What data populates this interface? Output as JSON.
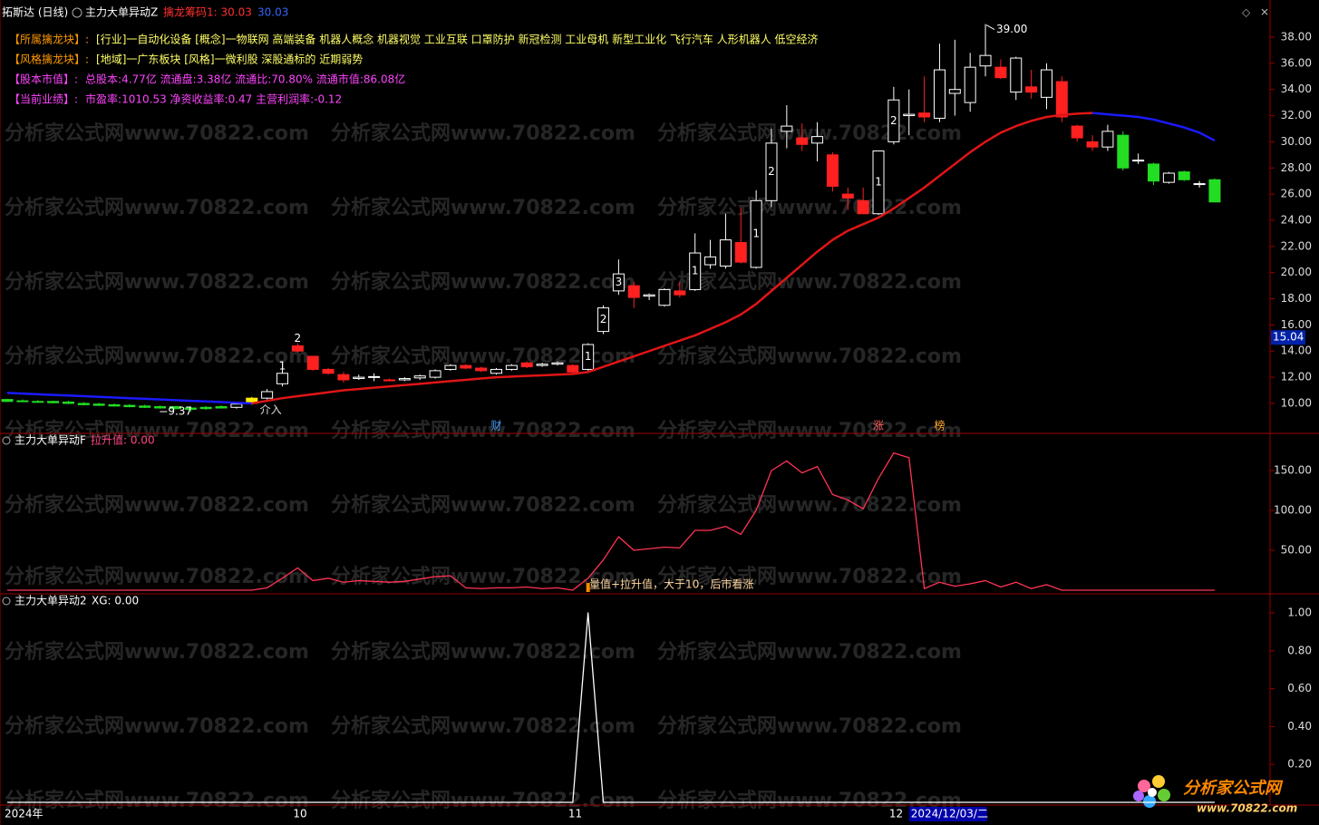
{
  "header": {
    "stock": "拓斯达 (日线)",
    "indicator": "主力大单异动Z",
    "chip_label": "擒龙筹码1: 30.03",
    "chip_value": "30.03"
  },
  "info": [
    {
      "key": "【所属擒龙块】:",
      "text": "[行业]一自动化设备 [概念]一物联网 高端装备 机器人概念 机器视觉 工业互联 口罩防护 新冠检测 工业母机 新型工业化 飞行汽车 人形机器人 低空经济",
      "key_color": "#ff9900",
      "text_color": "#ffff66"
    },
    {
      "key": "【风格擒龙块】:",
      "text": "[地域]一广东板块 [风格]一微利股 深股通标的 近期弱势",
      "key_color": "#ff9900",
      "text_color": "#ffff66"
    },
    {
      "key": "【股本市值】:",
      "text": "总股本:4.77亿 流通盘:3.38亿 流通比:70.80% 流通市值:86.08亿",
      "key_color": "#ff44ff",
      "text_color": "#ff44ff"
    },
    {
      "key": "【当前业绩】:",
      "text": "市盈率:1010.53 净资收益率:0.47 主营利润率:-0.12",
      "key_color": "#ff44ff",
      "text_color": "#ff44ff"
    }
  ],
  "watermark": "分析家公式网www.70822.com",
  "logo": {
    "name": "分析家公式网",
    "url": "www.70822.com"
  },
  "cursor_date": "2024/12/03/二",
  "chart_data": [
    {
      "type": "candlestick",
      "categories": [
        "2024年",
        null,
        null,
        null,
        null,
        null,
        null,
        null,
        null,
        null,
        null,
        null,
        null,
        null,
        null,
        null,
        null,
        null,
        null,
        "10",
        null,
        null,
        null,
        null,
        null,
        null,
        null,
        null,
        null,
        null,
        null,
        null,
        null,
        null,
        null,
        null,
        null,
        "11",
        null,
        null,
        null,
        null,
        null,
        null,
        null,
        null,
        null,
        null,
        null,
        null,
        null,
        null,
        null,
        null,
        null,
        null,
        null,
        null,
        "12",
        null,
        null,
        null,
        null,
        null,
        null,
        null,
        null,
        null,
        null,
        null,
        null,
        null,
        null,
        null,
        null,
        null,
        null,
        null,
        null,
        null
      ],
      "open": [
        10.3,
        10.2,
        10.15,
        10.15,
        10.1,
        10.0,
        9.95,
        9.9,
        9.85,
        9.8,
        9.75,
        9.75,
        9.65,
        9.7,
        9.75,
        9.7,
        10.0,
        10.4,
        11.5,
        14.4,
        13.6,
        12.6,
        12.2,
        11.9,
        12.0,
        11.8,
        11.8,
        11.95,
        12.0,
        12.6,
        12.9,
        12.7,
        12.3,
        12.6,
        13.1,
        12.9,
        13.0,
        12.9,
        12.6,
        15.5,
        18.6,
        19.0,
        18.2,
        17.5,
        18.6,
        18.7,
        20.6,
        20.5,
        22.3,
        20.4,
        25.5,
        30.8,
        30.3,
        29.9,
        29.0,
        26.0,
        25.5,
        24.5,
        30.0,
        32.0,
        32.2,
        31.8,
        33.7,
        33.0,
        35.8,
        35.7,
        33.8,
        34.2,
        33.4,
        34.6,
        31.2,
        30.0,
        29.6,
        30.5,
        28.6,
        28.3,
        26.9,
        27.7,
        26.8,
        27.1
      ],
      "high": [
        10.35,
        10.3,
        10.25,
        10.2,
        10.2,
        10.1,
        10.05,
        10.0,
        9.95,
        9.9,
        9.85,
        9.8,
        9.7,
        9.8,
        9.85,
        10.0,
        10.5,
        11.1,
        12.8,
        14.6,
        13.6,
        12.7,
        12.4,
        12.2,
        12.3,
        11.9,
        12.0,
        12.2,
        12.6,
        13.0,
        13.0,
        12.8,
        12.7,
        13.0,
        13.2,
        13.1,
        13.2,
        13.0,
        14.6,
        17.5,
        21.0,
        19.3,
        18.4,
        18.8,
        19.3,
        23.0,
        22.5,
        24.5,
        25.0,
        26.3,
        31.0,
        32.8,
        31.4,
        31.5,
        29.2,
        26.5,
        26.5,
        29.3,
        34.2,
        34.0,
        35.0,
        37.5,
        37.8,
        36.8,
        39.0,
        36.3,
        36.5,
        35.5,
        36.0,
        35.0,
        31.3,
        30.5,
        31.3,
        30.8,
        29.1,
        28.4,
        27.7,
        27.8,
        27.0,
        27.2
      ],
      "low": [
        10.1,
        10.1,
        10.05,
        10.0,
        9.95,
        9.85,
        9.8,
        9.75,
        9.7,
        9.65,
        9.6,
        9.55,
        9.37,
        9.5,
        9.6,
        9.6,
        9.9,
        10.3,
        11.3,
        13.9,
        12.5,
        12.2,
        11.6,
        11.8,
        11.7,
        11.7,
        11.7,
        11.8,
        11.9,
        12.5,
        12.6,
        12.4,
        12.2,
        12.5,
        12.7,
        12.8,
        12.9,
        12.3,
        12.5,
        15.3,
        18.3,
        17.3,
        17.9,
        17.4,
        18.1,
        18.6,
        20.3,
        20.3,
        20.7,
        20.3,
        25.0,
        29.5,
        29.3,
        28.5,
        26.2,
        24.8,
        24.5,
        24.4,
        29.8,
        30.5,
        31.5,
        31.5,
        32.0,
        32.3,
        35.0,
        34.8,
        33.2,
        33.3,
        32.5,
        31.5,
        30.0,
        29.3,
        29.3,
        27.8,
        28.3,
        26.7,
        26.8,
        27.0,
        26.5,
        25.4
      ],
      "close": [
        10.15,
        10.15,
        10.1,
        10.05,
        10.0,
        9.9,
        9.85,
        9.8,
        9.75,
        9.7,
        9.65,
        9.6,
        9.55,
        9.6,
        9.65,
        9.95,
        10.4,
        10.9,
        12.3,
        14.0,
        12.6,
        12.3,
        11.8,
        12.0,
        12.05,
        11.75,
        11.9,
        12.1,
        12.5,
        12.9,
        12.7,
        12.5,
        12.6,
        12.9,
        12.8,
        13.0,
        13.1,
        12.4,
        14.5,
        17.3,
        19.9,
        18.1,
        18.3,
        18.7,
        18.3,
        21.5,
        21.2,
        22.5,
        20.8,
        25.5,
        29.9,
        31.2,
        29.8,
        30.4,
        26.6,
        25.7,
        24.5,
        29.3,
        33.2,
        32.1,
        31.9,
        35.5,
        34.0,
        35.7,
        36.6,
        34.9,
        36.4,
        33.8,
        35.5,
        31.9,
        30.3,
        29.6,
        30.8,
        28.0,
        28.6,
        27.0,
        27.6,
        27.1,
        26.8,
        25.4
      ],
      "colors": [
        "#22dd22",
        "#22dd22",
        "#22dd22",
        "#22dd22",
        "#22dd22",
        "#22dd22",
        "#22dd22",
        "#22dd22",
        "#22dd22",
        "#22dd22",
        "#22dd22",
        "#22dd22",
        "#22dd22",
        "#22dd22",
        "#22dd22",
        "#ffffff",
        "#ffee00",
        "#ffffff",
        "#ffffff",
        "#ff2020",
        "#ff2020",
        "#ff2020",
        "#ff2020",
        "#ffffff",
        "#ffffff",
        "#ff2020",
        "#ffffff",
        "#ffffff",
        "#ffffff",
        "#ffffff",
        "#ff2020",
        "#ff2020",
        "#ffffff",
        "#ffffff",
        "#ff2020",
        "#ffffff",
        "#ffffff",
        "#ff2020",
        "#ffffff",
        "#ffffff",
        "#ffffff",
        "#ff2020",
        "#ffffff",
        "#ffffff",
        "#ff2020",
        "#ffffff",
        "#ffffff",
        "#ffffff",
        "#ff2020",
        "#ffffff",
        "#ffffff",
        "#ffffff",
        "#ff2020",
        "#ffffff",
        "#ff2020",
        "#ff2020",
        "#ff2020",
        "#ffffff",
        "#ffffff",
        "#ffffff",
        "#ff2020",
        "#ffffff",
        "#ffffff",
        "#ffffff",
        "#ffffff",
        "#ff2020",
        "#ffffff",
        "#ff2020",
        "#ffffff",
        "#ff2020",
        "#ff2020",
        "#ff2020",
        "#ffffff",
        "#22dd22",
        "#ffffff",
        "#22dd22",
        "#ffffff",
        "#22dd22",
        "#ffffff",
        "#22dd22"
      ],
      "candle_labels": [
        null,
        null,
        null,
        null,
        null,
        null,
        null,
        null,
        null,
        null,
        null,
        null,
        null,
        null,
        null,
        null,
        null,
        null,
        "1",
        "2",
        null,
        null,
        null,
        null,
        null,
        null,
        null,
        null,
        null,
        null,
        null,
        null,
        null,
        null,
        null,
        null,
        null,
        null,
        "1",
        "2",
        "3",
        null,
        null,
        null,
        null,
        "1",
        null,
        null,
        null,
        "1",
        "2",
        null,
        null,
        null,
        null,
        null,
        null,
        "1",
        "2",
        null,
        null,
        null,
        null,
        null,
        null,
        null,
        null,
        null,
        null,
        null,
        null,
        null,
        null,
        null,
        null,
        null,
        null,
        null,
        null,
        null
      ],
      "signal_labels": [
        null,
        null,
        null,
        null,
        null,
        null,
        null,
        null,
        null,
        null,
        null,
        null,
        null,
        null,
        null,
        null,
        null,
        "介入",
        null,
        null,
        null,
        null,
        null,
        null,
        null,
        null,
        null,
        null,
        null,
        null,
        null,
        null,
        null,
        null,
        null,
        null,
        null,
        null,
        null,
        null,
        null,
        null,
        null,
        null,
        null,
        null,
        null,
        null,
        null,
        null,
        null,
        null,
        null,
        null,
        null,
        null,
        null,
        null,
        null,
        null,
        null,
        null,
        null,
        null,
        null,
        null,
        null,
        null,
        null,
        null,
        null,
        null,
        null,
        null,
        null,
        null,
        null,
        null,
        null,
        null
      ],
      "event_marks": [
        null,
        null,
        null,
        null,
        null,
        null,
        null,
        null,
        null,
        null,
        null,
        null,
        null,
        null,
        null,
        null,
        null,
        null,
        null,
        null,
        null,
        null,
        null,
        null,
        null,
        null,
        null,
        null,
        null,
        null,
        null,
        null,
        "财",
        null,
        null,
        null,
        null,
        null,
        null,
        null,
        null,
        null,
        null,
        null,
        null,
        null,
        null,
        null,
        null,
        null,
        null,
        null,
        null,
        null,
        null,
        null,
        null,
        "涨",
        null,
        null,
        null,
        "榜",
        null,
        null,
        null,
        null,
        null,
        null,
        null,
        null,
        null,
        null,
        null,
        null,
        null,
        null,
        null,
        null,
        null,
        null
      ],
      "ma": [
        {
          "color": "#1a1aff",
          "values": [
            10.8,
            10.75,
            10.7,
            10.65,
            10.6,
            10.55,
            10.5,
            10.45,
            10.4,
            10.35,
            10.3,
            10.25,
            10.2,
            10.15,
            10.1,
            10.05,
            10.0,
            null,
            null,
            null,
            null,
            null,
            null,
            null,
            null,
            null,
            null,
            null,
            null,
            null,
            null,
            null,
            null,
            null,
            null,
            null,
            null,
            null,
            null,
            null,
            null,
            null,
            null,
            null,
            null,
            null,
            null,
            null,
            null,
            null,
            null,
            null,
            null,
            null,
            null,
            null,
            null,
            null,
            null,
            null,
            null,
            null,
            null,
            null,
            null,
            null,
            null,
            null,
            null,
            null,
            null,
            32.2,
            32.1,
            32.0,
            31.9,
            31.7,
            31.4,
            31.1,
            30.7,
            30.1
          ]
        },
        {
          "color": "#e01515",
          "values": [
            null,
            null,
            null,
            null,
            null,
            null,
            null,
            null,
            null,
            null,
            null,
            null,
            null,
            null,
            null,
            null,
            10.0,
            10.2,
            10.4,
            10.55,
            10.7,
            10.85,
            11.0,
            11.1,
            11.2,
            11.3,
            11.4,
            11.5,
            11.6,
            11.7,
            11.8,
            11.9,
            12.0,
            12.05,
            12.1,
            12.15,
            12.2,
            12.25,
            12.4,
            12.8,
            13.2,
            13.6,
            14.0,
            14.4,
            14.8,
            15.2,
            15.7,
            16.2,
            16.8,
            17.6,
            18.6,
            19.6,
            20.6,
            21.6,
            22.5,
            23.2,
            23.7,
            24.2,
            24.9,
            25.7,
            26.5,
            27.4,
            28.3,
            29.2,
            30.0,
            30.7,
            31.2,
            31.6,
            31.9,
            32.05,
            32.15,
            32.2,
            null,
            null,
            null,
            null,
            null,
            null,
            null,
            null
          ]
        }
      ],
      "high_label": {
        "value": 39.0,
        "label": "39.00"
      },
      "low_label": {
        "value": 9.37,
        "label": "9.37"
      },
      "price_tag": 15.04,
      "ylim": [
        7.71,
        40.84
      ],
      "yticks": [
        {
          "value": 10,
          "label": "10.00"
        },
        {
          "value": 12,
          "label": "12.00"
        },
        {
          "value": 14,
          "label": "14.00"
        },
        {
          "value": 16,
          "label": "16.00"
        },
        {
          "value": 18,
          "label": "18.00"
        },
        {
          "value": 20,
          "label": "20.00"
        },
        {
          "value": 22,
          "label": "22.00"
        },
        {
          "value": 24,
          "label": "24.00"
        },
        {
          "value": 26,
          "label": "26.00"
        },
        {
          "value": 28,
          "label": "28.00"
        },
        {
          "value": 30,
          "label": "30.00"
        },
        {
          "value": 32,
          "label": "32.00"
        },
        {
          "value": 34,
          "label": "34.00"
        },
        {
          "value": 36,
          "label": "36.00"
        },
        {
          "value": 38,
          "label": "38.00"
        }
      ]
    },
    {
      "type": "line",
      "title": "主力大单异动F",
      "legend": "拉升值: 0.00",
      "color": "#ff3355",
      "note": "量值+拉升值，大于10，后市看涨",
      "values": [
        0,
        0,
        0,
        0,
        0,
        0,
        0,
        0,
        0,
        0,
        0,
        0,
        0,
        0,
        0,
        0,
        0,
        3,
        15,
        28,
        12,
        15,
        10,
        12,
        11,
        10,
        11,
        14,
        17,
        18,
        3,
        2,
        3,
        3,
        4,
        2,
        3,
        0,
        15,
        38,
        67,
        50,
        52,
        54,
        53,
        75,
        75,
        80,
        70,
        100,
        150,
        162,
        147,
        155,
        120,
        113,
        102,
        140,
        172,
        166,
        2,
        10,
        5,
        8,
        12,
        4,
        10,
        2,
        7,
        0,
        0,
        0,
        0,
        0,
        0,
        0,
        0,
        0,
        0,
        0
      ],
      "ylim": [
        -4.55,
        195.45
      ],
      "yticks": [
        {
          "value": 50,
          "label": "50.00"
        },
        {
          "value": 100,
          "label": "100.00"
        },
        {
          "value": 150,
          "label": "150.00"
        }
      ]
    },
    {
      "type": "line",
      "title": "主力大单异动2",
      "legend": "XG: 0.00",
      "color": "#ffffff",
      "values": [
        0,
        0,
        0,
        0,
        0,
        0,
        0,
        0,
        0,
        0,
        0,
        0,
        0,
        0,
        0,
        0,
        0,
        0,
        0,
        0,
        0,
        0,
        0,
        0,
        0,
        0,
        0,
        0,
        0,
        0,
        0,
        0,
        0,
        0,
        0,
        0,
        0,
        0,
        1,
        0,
        0,
        0,
        0,
        0,
        0,
        0,
        0,
        0,
        0,
        0,
        0,
        0,
        0,
        0,
        0,
        0,
        0,
        0,
        0,
        0,
        0,
        0,
        0,
        0,
        0,
        0,
        0,
        0,
        0,
        0,
        0,
        0,
        0,
        0,
        0,
        0,
        0,
        0,
        0,
        0
      ],
      "ylim": [
        -0.0144,
        1.0957
      ],
      "yticks": [
        {
          "value": 0.2,
          "label": "0.20"
        },
        {
          "value": 0.4,
          "label": "0.40"
        },
        {
          "value": 0.6,
          "label": "0.60"
        },
        {
          "value": 0.8,
          "label": "0.80"
        },
        {
          "value": 1,
          "label": "1.00"
        }
      ]
    }
  ]
}
